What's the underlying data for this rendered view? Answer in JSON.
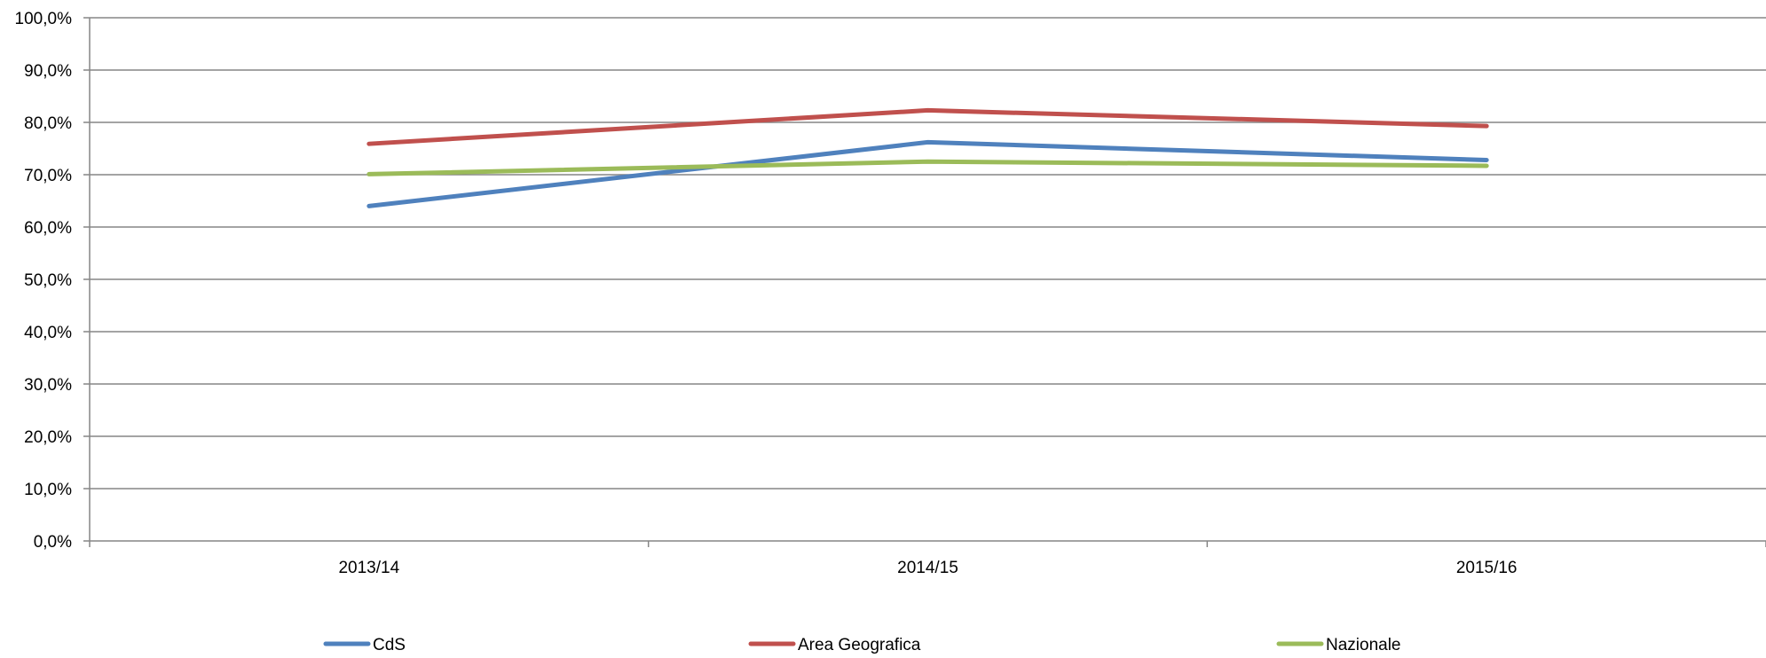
{
  "chart_data": {
    "type": "line",
    "title": "",
    "xlabel": "",
    "ylabel": "",
    "categories": [
      "2013/14",
      "2014/15",
      "2015/16"
    ],
    "ylim": [
      0,
      100
    ],
    "y_ticks": [
      "0,0%",
      "10,0%",
      "20,0%",
      "30,0%",
      "40,0%",
      "50,0%",
      "60,0%",
      "70,0%",
      "80,0%",
      "90,0%",
      "100,0%"
    ],
    "grid": true,
    "legend": {
      "position": "bottom",
      "entries": [
        "CdS",
        "Area Geografica",
        "Nazionale"
      ]
    },
    "series": [
      {
        "name": "CdS",
        "color": "#4F81BD",
        "values": [
          64.0,
          76.2,
          72.8
        ]
      },
      {
        "name": "Area Geografica",
        "color": "#C0504D",
        "values": [
          75.9,
          82.3,
          79.3
        ]
      },
      {
        "name": "Nazionale",
        "color": "#9BBB59",
        "values": [
          70.1,
          72.5,
          71.7
        ]
      }
    ]
  }
}
